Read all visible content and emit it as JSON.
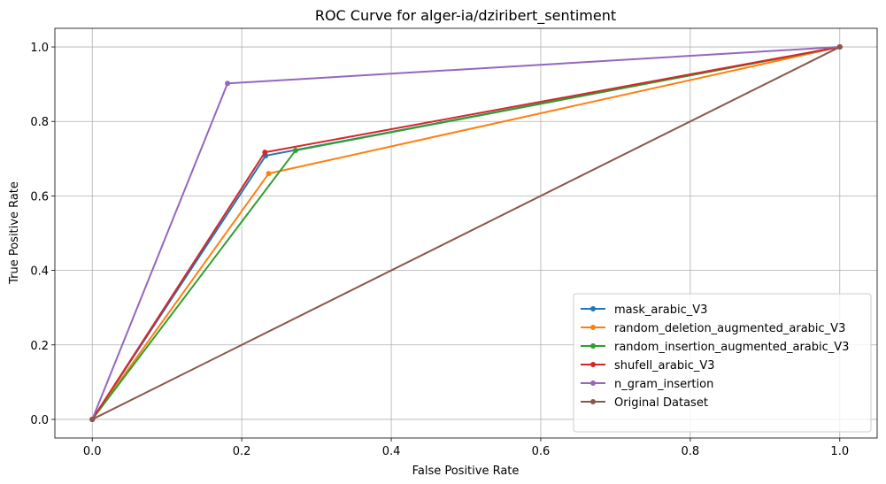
{
  "chart_data": {
    "type": "line",
    "title": "ROC Curve for alger-ia/dziribert_sentiment",
    "xlabel": "False Positive Rate",
    "ylabel": "True Positive Rate",
    "xlim": [
      -0.05,
      1.05
    ],
    "ylim": [
      -0.05,
      1.05
    ],
    "xticks": [
      "0.0",
      "0.2",
      "0.4",
      "0.6",
      "0.8",
      "1.0"
    ],
    "yticks": [
      "0.0",
      "0.2",
      "0.4",
      "0.6",
      "0.8",
      "1.0"
    ],
    "grid": true,
    "legend_position": "lower-right",
    "series": [
      {
        "name": "mask_arabic_V3",
        "color": "#1f77b4",
        "x": [
          0.0,
          0.232,
          1.0
        ],
        "y": [
          0.0,
          0.708,
          1.0
        ]
      },
      {
        "name": "random_deletion_augmented_arabic_V3",
        "color": "#ff7f0e",
        "x": [
          0.0,
          0.236,
          1.0
        ],
        "y": [
          0.0,
          0.66,
          1.0
        ]
      },
      {
        "name": "random_insertion_augmented_arabic_V3",
        "color": "#2ca02c",
        "x": [
          0.0,
          0.272,
          1.0
        ],
        "y": [
          0.0,
          0.722,
          1.0
        ]
      },
      {
        "name": "shufell_arabic_V3",
        "color": "#d62728",
        "x": [
          0.0,
          0.231,
          1.0
        ],
        "y": [
          0.0,
          0.717,
          1.0
        ]
      },
      {
        "name": "n_gram_insertion",
        "color": "#9467bd",
        "x": [
          0.0,
          0.181,
          1.0
        ],
        "y": [
          0.0,
          0.902,
          1.0
        ]
      },
      {
        "name": "Original Dataset",
        "color": "#8c564b",
        "x": [
          0.0,
          1.0
        ],
        "y": [
          0.0,
          1.0
        ]
      }
    ]
  }
}
